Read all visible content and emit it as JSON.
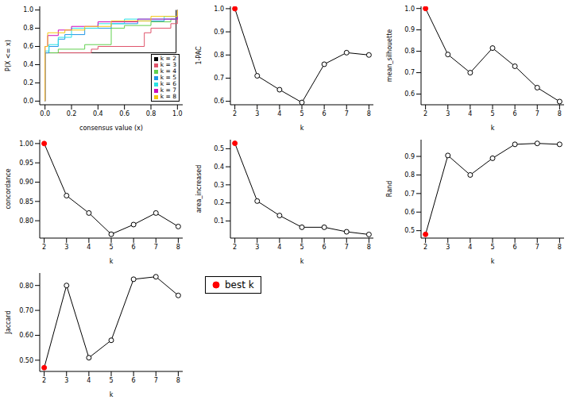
{
  "chart_data": [
    {
      "type": "step",
      "x_label": "consensus value (x)",
      "y_label": "P(X <= x)",
      "xlim": [
        -0.04,
        1.04
      ],
      "xticks": [
        {
          "value": 0,
          "label": "0.0"
        },
        0.2,
        0.4,
        0.6,
        0.8,
        {
          "value": 1,
          "label": "1.0"
        }
      ],
      "ylim": [
        -0.04,
        1.04
      ],
      "yticks": [
        {
          "value": 0,
          "label": "0.0"
        },
        0.2,
        0.4,
        0.6,
        0.8,
        {
          "value": 1,
          "label": "1.0"
        }
      ],
      "legend": "bottom right",
      "series": [
        {
          "name": "k = 2",
          "color": "#000000",
          "x": [
            0,
            0,
            0.99,
            0.99
          ],
          "values": [
            0,
            0.53,
            0.53,
            1.0
          ]
        },
        {
          "name": "k = 3",
          "color": "#DF536B",
          "x": [
            0,
            0,
            0.35,
            0.4,
            0.75,
            0.8,
            0.95,
            1.0
          ],
          "values": [
            0,
            0.53,
            0.57,
            0.6,
            0.75,
            0.8,
            0.85,
            1.0
          ]
        },
        {
          "name": "k = 4",
          "color": "#61D04F",
          "x": [
            0,
            0,
            0.1,
            0.3,
            0.5,
            0.6,
            0.8,
            0.95,
            1.0
          ],
          "values": [
            0,
            0.53,
            0.57,
            0.62,
            0.8,
            0.83,
            0.87,
            0.9,
            1.0
          ]
        },
        {
          "name": "k = 5",
          "color": "#2297E6",
          "x": [
            0,
            0,
            0.03,
            0.1,
            0.15,
            0.3,
            0.5,
            0.7,
            0.9,
            1.0
          ],
          "values": [
            0,
            0.53,
            0.6,
            0.68,
            0.73,
            0.8,
            0.85,
            0.88,
            0.9,
            1.0
          ]
        },
        {
          "name": "k = 6",
          "color": "#28E2E5",
          "x": [
            0,
            0,
            0.03,
            0.1,
            0.2,
            0.4,
            0.6,
            0.9,
            1.0
          ],
          "values": [
            0,
            0.55,
            0.62,
            0.7,
            0.8,
            0.85,
            0.9,
            0.93,
            1.0
          ]
        },
        {
          "name": "k = 7",
          "color": "#CD0BBC",
          "x": [
            0,
            0,
            0.02,
            0.1,
            0.2,
            0.4,
            0.7,
            1.0
          ],
          "values": [
            0,
            0.6,
            0.72,
            0.78,
            0.82,
            0.87,
            0.9,
            1.0
          ]
        },
        {
          "name": "k = 8",
          "color": "#F5C710",
          "x": [
            0,
            0,
            0.02,
            0.15,
            0.3,
            0.5,
            0.8,
            1.0
          ],
          "values": [
            0,
            0.6,
            0.75,
            0.78,
            0.82,
            0.88,
            0.93,
            1.0
          ]
        }
      ]
    },
    {
      "type": "line",
      "x_label": "k",
      "y_label": "1-PAC",
      "xlim": [
        1.8,
        8.2
      ],
      "xticks": [
        2,
        3,
        4,
        5,
        6,
        7,
        8
      ],
      "ylim": [
        0.585,
        1.01
      ],
      "yticks": [
        0.6,
        0.7,
        0.8,
        0.9,
        {
          "value": 1,
          "label": "1.0"
        }
      ],
      "x": [
        2,
        3,
        4,
        5,
        6,
        7,
        8
      ],
      "values": [
        1.0,
        0.71,
        0.65,
        0.595,
        0.76,
        0.81,
        0.8
      ],
      "color": "#000000",
      "colors": [
        "#FF0000",
        "#000000",
        "#000000",
        "#000000",
        "#000000",
        "#000000",
        "#000000"
      ]
    },
    {
      "type": "line",
      "x_label": "k",
      "y_label": "mean_silhouette",
      "xlim": [
        1.8,
        8.2
      ],
      "xticks": [
        2,
        3,
        4,
        5,
        6,
        7,
        8
      ],
      "ylim": [
        0.55,
        1.01
      ],
      "yticks": [
        0.6,
        0.7,
        0.8,
        0.9,
        {
          "value": 1,
          "label": "1.0"
        }
      ],
      "x": [
        2,
        3,
        4,
        5,
        6,
        7,
        8
      ],
      "values": [
        1.0,
        0.785,
        0.7,
        0.815,
        0.73,
        0.63,
        0.565
      ],
      "color": "#000000",
      "colors": [
        "#FF0000",
        "#000000",
        "#000000",
        "#000000",
        "#000000",
        "#000000",
        "#000000"
      ]
    },
    {
      "type": "line",
      "x_label": "k",
      "y_label": "concordance",
      "xlim": [
        1.8,
        8.2
      ],
      "xticks": [
        2,
        3,
        4,
        5,
        6,
        7,
        8
      ],
      "ylim": [
        0.755,
        1.01
      ],
      "yticks": [
        {
          "value": 0.8,
          "label": "0.80"
        },
        {
          "value": 0.85,
          "label": "0.85"
        },
        {
          "value": 0.9,
          "label": "0.90"
        },
        {
          "value": 0.95,
          "label": "0.95"
        },
        {
          "value": 1,
          "label": "1.00"
        }
      ],
      "x": [
        2,
        3,
        4,
        5,
        6,
        7,
        8
      ],
      "values": [
        1.0,
        0.865,
        0.82,
        0.765,
        0.79,
        0.82,
        0.785
      ],
      "color": "#000000",
      "colors": [
        "#FF0000",
        "#000000",
        "#000000",
        "#000000",
        "#000000",
        "#000000",
        "#000000"
      ]
    },
    {
      "type": "line",
      "x_label": "k",
      "y_label": "area_increased",
      "xlim": [
        1.8,
        8.2
      ],
      "xticks": [
        2,
        3,
        4,
        5,
        6,
        7,
        8
      ],
      "ylim": [
        0.005,
        0.55
      ],
      "yticks": [
        0.1,
        0.2,
        0.3,
        0.4,
        0.5
      ],
      "x": [
        2,
        3,
        4,
        5,
        6,
        7,
        8
      ],
      "values": [
        0.53,
        0.21,
        0.13,
        0.065,
        0.065,
        0.04,
        0.025
      ],
      "color": "#000000",
      "colors": [
        "#FF0000",
        "#000000",
        "#000000",
        "#000000",
        "#000000",
        "#000000",
        "#000000"
      ]
    },
    {
      "type": "line",
      "x_label": "k",
      "y_label": "Rand",
      "xlim": [
        1.8,
        8.2
      ],
      "xticks": [
        2,
        3,
        4,
        5,
        6,
        7,
        8
      ],
      "ylim": [
        0.46,
        0.99
      ],
      "yticks": [
        0.5,
        0.6,
        0.7,
        0.8,
        0.9
      ],
      "x": [
        2,
        3,
        4,
        5,
        6,
        7,
        8
      ],
      "values": [
        0.48,
        0.905,
        0.8,
        0.89,
        0.965,
        0.97,
        0.965
      ],
      "color": "#000000",
      "colors": [
        "#FF0000",
        "#000000",
        "#000000",
        "#000000",
        "#000000",
        "#000000",
        "#000000"
      ]
    },
    {
      "type": "line",
      "x_label": "k",
      "y_label": "Jaccard",
      "xlim": [
        1.8,
        8.2
      ],
      "xticks": [
        2,
        3,
        4,
        5,
        6,
        7,
        8
      ],
      "ylim": [
        0.455,
        0.85
      ],
      "yticks": [
        {
          "value": 0.5,
          "label": "0.50"
        },
        {
          "value": 0.6,
          "label": "0.60"
        },
        {
          "value": 0.7,
          "label": "0.70"
        },
        {
          "value": 0.8,
          "label": "0.80"
        }
      ],
      "x": [
        2,
        3,
        4,
        5,
        6,
        7,
        8
      ],
      "values": [
        0.47,
        0.8,
        0.51,
        0.58,
        0.825,
        0.835,
        0.76
      ],
      "color": "#000000",
      "colors": [
        "#FF0000",
        "#000000",
        "#000000",
        "#000000",
        "#000000",
        "#000000",
        "#000000"
      ]
    }
  ],
  "key": {
    "text": "best k",
    "color": "#FF0000"
  }
}
